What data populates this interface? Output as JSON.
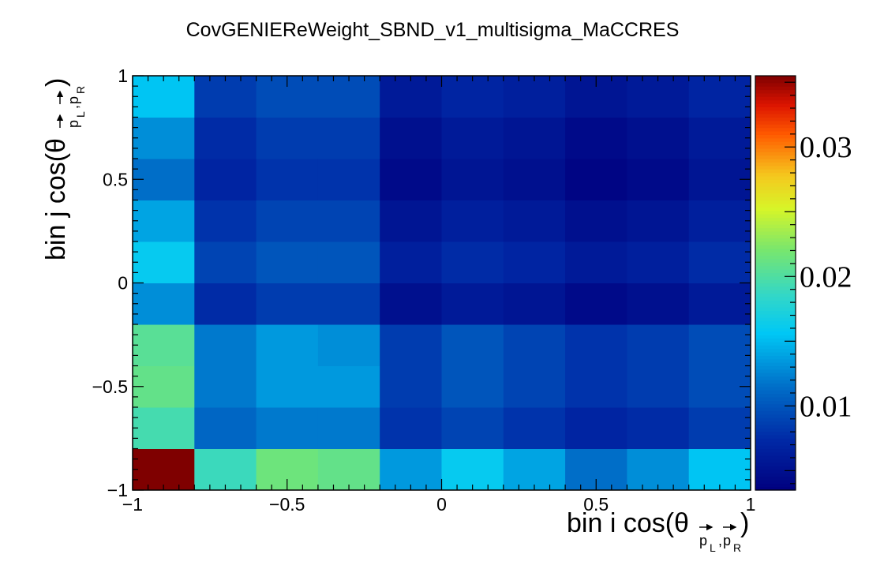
{
  "chart_data": {
    "type": "heatmap",
    "title": "CovGENIEReWeight_SBND_v1_multisigma_MaCCRES",
    "xlabel": {
      "prefix": "bin i cos(θ",
      "sub1": "p",
      "sub1_sub": "L",
      "comma": ",",
      "sub2": "p",
      "sub2_sub": "R",
      "suffix": ")"
    },
    "ylabel": {
      "prefix": "bin j cos(θ",
      "sub1": "p",
      "sub1_sub": "L",
      "comma": ",",
      "sub2": "p",
      "sub2_sub": "R",
      "suffix": ")"
    },
    "xlim": [
      -1,
      1
    ],
    "ylim": [
      -1,
      1
    ],
    "x_edges": [
      -1,
      -0.8,
      -0.6,
      -0.4,
      -0.2,
      0,
      0.2,
      0.4,
      0.6,
      0.8,
      1
    ],
    "y_edges": [
      -1,
      -0.8,
      -0.6,
      -0.4,
      -0.2,
      0,
      0.2,
      0.4,
      0.6,
      0.8,
      1
    ],
    "x_ticks": [
      {
        "value": -1,
        "label": "−1"
      },
      {
        "value": -0.5,
        "label": "−0.5"
      },
      {
        "value": 0,
        "label": "0"
      },
      {
        "value": 0.5,
        "label": "0.5"
      },
      {
        "value": 1,
        "label": "1"
      }
    ],
    "y_ticks": [
      {
        "value": -1,
        "label": "−1"
      },
      {
        "value": -0.5,
        "label": "−0.5"
      },
      {
        "value": 0,
        "label": "0"
      },
      {
        "value": 0.5,
        "label": "0.5"
      },
      {
        "value": 1,
        "label": "1"
      }
    ],
    "z_range": [
      0.0035,
      0.0355
    ],
    "z_ticks": [
      {
        "value": 0.01,
        "label": "0.01"
      },
      {
        "value": 0.02,
        "label": "0.02"
      },
      {
        "value": 0.03,
        "label": "0.03"
      }
    ],
    "colormap": "rainbow (ROOT kRainBow)",
    "values": [
      [
        0.0355,
        0.019,
        0.0215,
        0.021,
        0.0135,
        0.016,
        0.014,
        0.0115,
        0.013,
        0.0155
      ],
      [
        0.0195,
        0.011,
        0.012,
        0.012,
        0.008,
        0.009,
        0.008,
        0.007,
        0.0075,
        0.0085
      ],
      [
        0.021,
        0.012,
        0.0135,
        0.0135,
        0.0085,
        0.01,
        0.009,
        0.008,
        0.0085,
        0.0095
      ],
      [
        0.0205,
        0.012,
        0.0135,
        0.013,
        0.0085,
        0.01,
        0.009,
        0.008,
        0.0085,
        0.0095
      ],
      [
        0.013,
        0.0075,
        0.0085,
        0.0085,
        0.005,
        0.006,
        0.0055,
        0.0045,
        0.005,
        0.006
      ],
      [
        0.016,
        0.009,
        0.01,
        0.01,
        0.0065,
        0.0075,
        0.007,
        0.006,
        0.0065,
        0.0075
      ],
      [
        0.014,
        0.008,
        0.009,
        0.009,
        0.0055,
        0.0065,
        0.006,
        0.005,
        0.0055,
        0.0065
      ],
      [
        0.0115,
        0.007,
        0.008,
        0.008,
        0.0045,
        0.0055,
        0.005,
        0.004,
        0.0045,
        0.0055
      ],
      [
        0.013,
        0.0075,
        0.0085,
        0.0085,
        0.005,
        0.006,
        0.0055,
        0.0045,
        0.005,
        0.006
      ],
      [
        0.0155,
        0.0085,
        0.0095,
        0.0095,
        0.006,
        0.007,
        0.0065,
        0.0055,
        0.006,
        0.007
      ]
    ],
    "grid": false,
    "legend": "colorbar-right"
  }
}
